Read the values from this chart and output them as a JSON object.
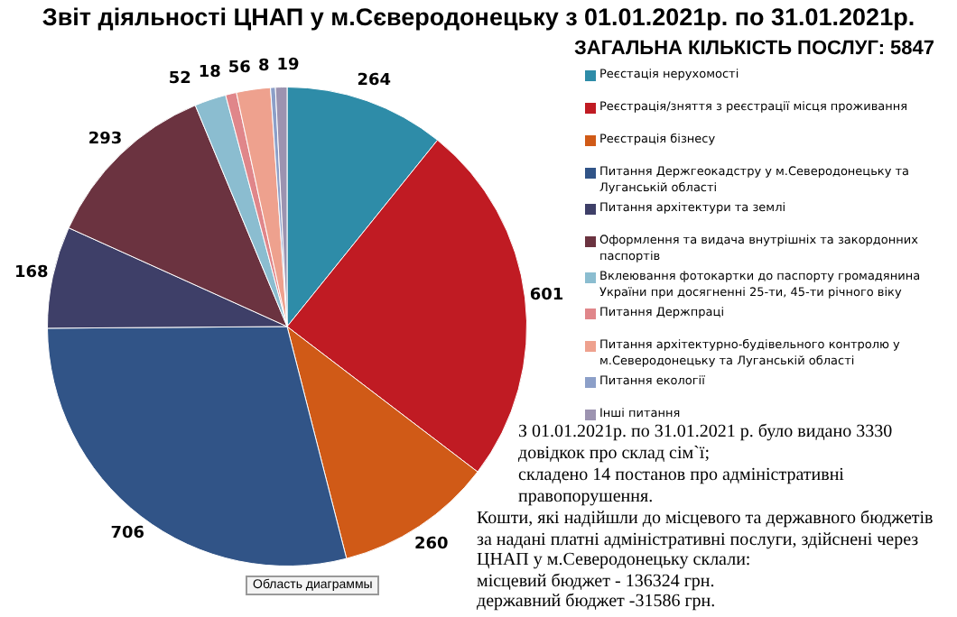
{
  "chart_data": {
    "type": "pie",
    "title": "Звіт діяльності ЦНАП у м.Сєверодонецьку  з 01.01.2021р.  по 31.01.2021р.",
    "subtitle": "ЗАГАЛЬНА КІЛЬКІСТЬ ПОСЛУГ: 5847",
    "categories": [
      "Реєстація нерухомості",
      "Реєстрація/зняття з реєстрації місця проживання",
      "Реєстрація бізнесу",
      "Питання Держгеокадстру у м.Северодонецьку та Луганській області",
      "Питання архітектури та землі",
      "Оформлення та видача внутрішніх та закордонних паспортів",
      "Вклеювання фотокартки до паспорту громадянина України при досягненні 25-ти, 45-ти річного віку",
      "Питання Держпраці",
      "Питання архітектурно-будівельного контролю у м.Северодонецьку та Луганській області",
      "Питання екології",
      "Інші питання"
    ],
    "values": [
      264,
      601,
      260,
      706,
      168,
      293,
      52,
      18,
      56,
      8,
      19
    ],
    "colors": [
      "#2e8ca8",
      "#c01b23",
      "#d05a17",
      "#315487",
      "#3e3f68",
      "#6b3340",
      "#8bbdd0",
      "#e0868a",
      "#eea18e",
      "#8c9fc8",
      "#9c93b0"
    ],
    "data_labels": true,
    "legend": "right",
    "annotations": [
      "З 01.01.2021р. по 31.01.2021 р. було видано 3330 довідкок про склад сім`ї;",
      "складено 14 постанов про адміністративні правопорушення.",
      "Кошти, які надійшли до місцевого та державного бюджетів за надані платні адміністративні послуги, здійснені через ЦНАП у м.Северодонецьку склали:",
      "місцевий бюджет - 136324 грн.",
      "державний бюджет -31586 грн.",
      "Область диаграммы"
    ]
  }
}
